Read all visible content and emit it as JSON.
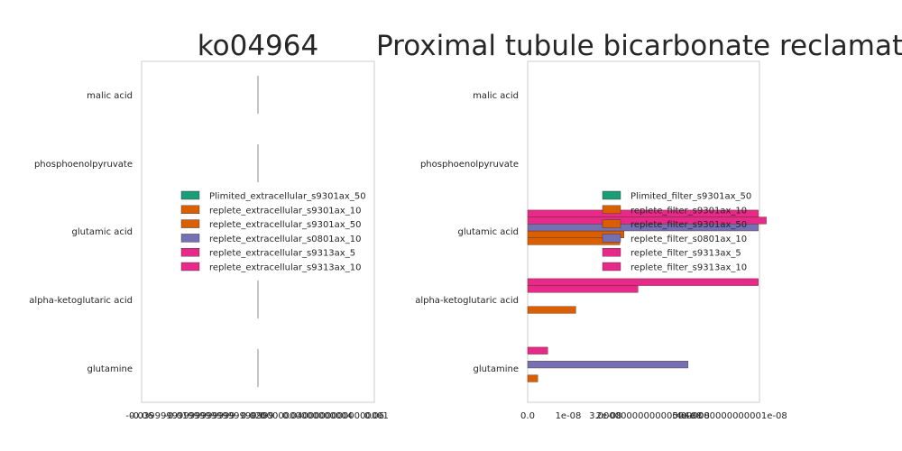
{
  "titles": {
    "left": "ko04964",
    "right": "Proximal tubule bicarbonate reclamation"
  },
  "chart_data": [
    {
      "type": "bar",
      "orientation": "horizontal",
      "title": "ko04964",
      "categories": [
        "malic acid",
        "phosphoenolpyruvate",
        "glutamic acid",
        "alpha-ketoglutaric acid",
        "glutamine"
      ],
      "xlim": [
        -0.06,
        0.06
      ],
      "x_tick_labels": [
        "-0.06",
        "-0.03999999999999999",
        "-0.01999999999999999",
        "0.0",
        "0.020000000000000004",
        "0.04000000000000001",
        "0.06"
      ],
      "legend_position": "center",
      "series": [
        {
          "name": "Plimited_extracellular_s9301ax_50",
          "color": "#1b9e77",
          "values": [
            0,
            0,
            0,
            0,
            0
          ]
        },
        {
          "name": "replete_extracellular_s9301ax_10",
          "color": "#d95f02",
          "values": [
            0,
            0,
            0,
            0,
            0
          ]
        },
        {
          "name": "replete_extracellular_s9301ax_50",
          "color": "#d95f02",
          "values": [
            0,
            0,
            0,
            0,
            0
          ]
        },
        {
          "name": "replete_extracellular_s0801ax_10",
          "color": "#7570b3",
          "values": [
            0,
            0,
            0,
            0,
            0
          ]
        },
        {
          "name": "replete_extracellular_s9313ax_5",
          "color": "#e7298a",
          "values": [
            0,
            0,
            0,
            0,
            0
          ]
        },
        {
          "name": "replete_extracellular_s9313ax_10",
          "color": "#e7298a",
          "values": [
            0,
            0,
            0,
            0,
            0
          ]
        }
      ]
    },
    {
      "type": "bar",
      "orientation": "horizontal",
      "title": "Proximal tubule bicarbonate reclamation",
      "categories": [
        "malic acid",
        "phosphoenolpyruvate",
        "glutamic acid",
        "alpha-ketoglutaric acid",
        "glutamine"
      ],
      "xlim": [
        0,
        5.78e-08
      ],
      "x_tick_labels": [
        "0.0",
        "1e-08",
        "2e-08",
        "3.0000000000000004e-08",
        "4e-08",
        "5.000000000000001e-08"
      ],
      "legend_position": "center right",
      "series": [
        {
          "name": "Plimited_filter_s9301ax_50",
          "color": "#1b9e77",
          "values": [
            0,
            0,
            0,
            0,
            0
          ]
        },
        {
          "name": "replete_filter_s9301ax_10",
          "color": "#d95f02",
          "values": [
            0,
            0,
            2.3e-08,
            1.2e-08,
            2.5e-09
          ]
        },
        {
          "name": "replete_filter_s9301ax_50",
          "color": "#d95f02",
          "values": [
            0,
            0,
            2.4e-08,
            0,
            0
          ]
        },
        {
          "name": "replete_filter_s0801ax_10",
          "color": "#7570b3",
          "values": [
            0,
            0,
            5.75e-08,
            0,
            4e-08
          ]
        },
        {
          "name": "replete_filter_s9313ax_5",
          "color": "#e7298a",
          "values": [
            0,
            0,
            5.95e-08,
            2.75e-08,
            0
          ]
        },
        {
          "name": "replete_filter_s9313ax_10",
          "color": "#e7298a",
          "values": [
            0,
            0,
            5.75e-08,
            5.75e-08,
            5e-09
          ]
        }
      ]
    }
  ]
}
